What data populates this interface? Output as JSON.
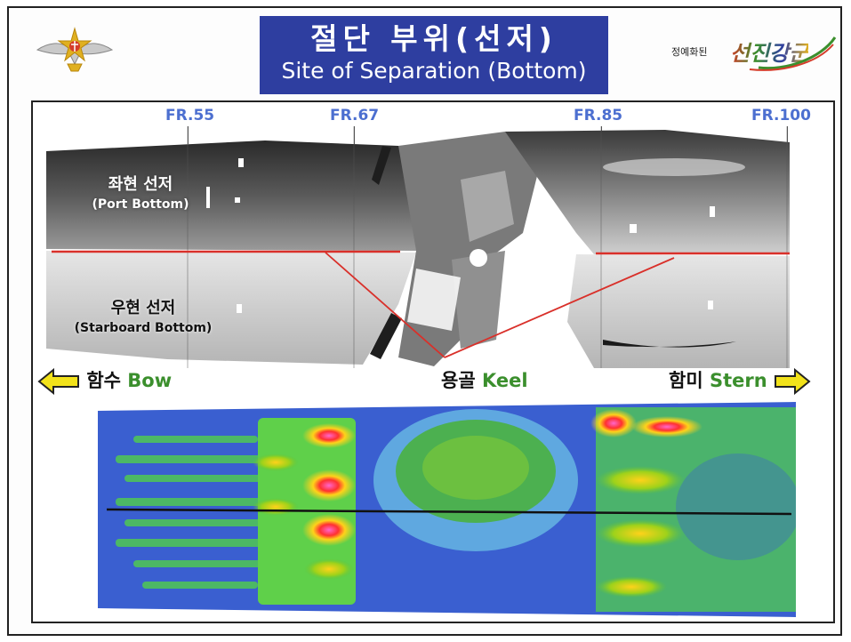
{
  "header": {
    "title_ko": "절단 부위(선저)",
    "title_en": "Site of Separation (Bottom)",
    "slogan_small": "정예화된",
    "slogan_big": "선진강군"
  },
  "frames": [
    "FR.55",
    "FR.67",
    "FR.85",
    "FR.100"
  ],
  "hull": {
    "port_ko": "좌현 선저",
    "port_en": "(Port Bottom)",
    "starboard_ko": "우현 선저",
    "starboard_en": "(Starboard Bottom)"
  },
  "labels": {
    "bow_ko": "함수",
    "bow_en": "Bow",
    "keel_ko": "용골",
    "keel_en": "Keel",
    "stern_ko": "함미",
    "stern_en": "Stern"
  },
  "colors": {
    "title_bg": "#2e3ea0",
    "frame_label": "#4c6fd0",
    "english_label": "#3b8f2d",
    "arrow_fill": "#f2e21a",
    "keel_line": "#d9302a",
    "heat_base": "#3a5fd0",
    "emblem_red": "#d43c2a",
    "emblem_gold": "#e0b020"
  },
  "icons": [
    "army-emblem-icon",
    "left-arrow-icon",
    "right-arrow-icon"
  ]
}
